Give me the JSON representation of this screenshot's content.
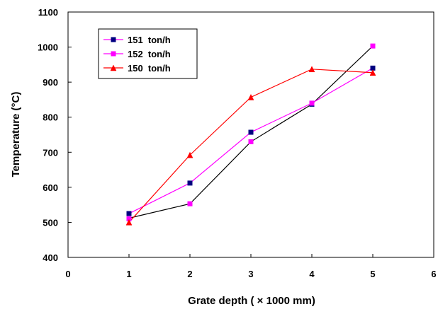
{
  "chart_data": {
    "type": "line",
    "title": "",
    "xlabel": "Grate depth ( × 1000 mm)",
    "ylabel": "Temperature (°C)",
    "xlim": [
      0,
      6
    ],
    "ylim": [
      400,
      1100
    ],
    "xticks": [
      0,
      1,
      2,
      3,
      4,
      5,
      6
    ],
    "yticks": [
      400,
      500,
      600,
      700,
      800,
      900,
      1000,
      1100
    ],
    "grid": false,
    "legend_position": "top-left",
    "series": [
      {
        "name": "151  ton/h",
        "color": "#000000",
        "marker_color": "#000080",
        "marker": "square",
        "x": [
          1,
          2,
          3,
          4,
          5
        ],
        "values": [
          525,
          612,
          757,
          837,
          940
        ]
      },
      {
        "name": "152  ton/h",
        "color": "#ff00ff",
        "marker_color": "#ff00ff",
        "marker": "square",
        "x": [
          1,
          2,
          3,
          4,
          5
        ],
        "values": [
          510,
          553,
          730,
          840,
          1003
        ]
      },
      {
        "name": "150  ton/h",
        "color": "#ff0000",
        "marker_color": "#ff0000",
        "marker": "triangle",
        "x": [
          1,
          2,
          3,
          4,
          5
        ],
        "values": [
          500,
          692,
          857,
          937,
          927
        ]
      }
    ],
    "connector_series": [
      {
        "color": "#000000",
        "x": [
          1,
          2,
          3,
          4,
          5
        ],
        "values": [
          512,
          553,
          730,
          837,
          1003
        ]
      },
      {
        "color": "#ff00ff",
        "x": [
          1,
          2,
          3,
          4,
          5
        ],
        "values": [
          525,
          612,
          757,
          840,
          940
        ]
      }
    ]
  }
}
